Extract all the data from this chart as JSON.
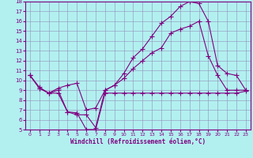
{
  "xlabel": "Windchill (Refroidissement éolien,°C)",
  "bg_color": "#b2f0f0",
  "line_color": "#800080",
  "xlim": [
    -0.5,
    23.5
  ],
  "ylim": [
    5,
    18
  ],
  "xticks": [
    0,
    1,
    2,
    3,
    4,
    5,
    6,
    7,
    8,
    9,
    10,
    11,
    12,
    13,
    14,
    15,
    16,
    17,
    18,
    19,
    20,
    21,
    22,
    23
  ],
  "yticks": [
    5,
    6,
    7,
    8,
    9,
    10,
    11,
    12,
    13,
    14,
    15,
    16,
    17,
    18
  ],
  "series1_x": [
    0,
    1,
    2,
    3,
    4,
    5,
    6,
    7,
    8,
    9,
    10,
    11,
    12,
    13,
    14,
    15,
    16,
    17,
    18,
    19,
    20,
    21,
    22,
    23
  ],
  "series1_y": [
    10.5,
    9.3,
    8.7,
    8.7,
    6.8,
    6.7,
    5.0,
    5.0,
    8.7,
    8.7,
    8.7,
    8.7,
    8.7,
    8.7,
    8.7,
    8.7,
    8.7,
    8.7,
    8.7,
    8.7,
    8.7,
    8.7,
    8.7,
    8.9
  ],
  "series2_x": [
    0,
    1,
    2,
    3,
    4,
    5,
    6,
    7,
    8,
    9,
    10,
    11,
    12,
    13,
    14,
    15,
    16,
    17,
    18,
    19,
    20,
    21,
    22,
    23
  ],
  "series2_y": [
    10.5,
    9.2,
    8.7,
    9.2,
    9.5,
    9.7,
    7.0,
    7.2,
    9.0,
    9.5,
    10.2,
    11.2,
    12.0,
    12.8,
    13.3,
    14.8,
    15.2,
    15.5,
    16.0,
    12.5,
    10.5,
    9.0,
    9.0,
    9.0
  ],
  "series3_x": [
    0,
    1,
    2,
    3,
    4,
    5,
    6,
    7,
    8,
    9,
    10,
    11,
    12,
    13,
    14,
    15,
    16,
    17,
    18,
    19,
    20,
    21,
    22,
    23
  ],
  "series3_y": [
    10.5,
    9.2,
    8.7,
    9.0,
    6.8,
    6.5,
    6.5,
    5.2,
    9.0,
    9.5,
    10.7,
    12.3,
    13.2,
    14.5,
    15.8,
    16.5,
    17.5,
    18.0,
    17.8,
    16.0,
    11.5,
    10.7,
    10.5,
    9.0
  ],
  "grid_color": "#9090b8",
  "marker": "+",
  "marker_size": 4,
  "linewidth": 0.8
}
